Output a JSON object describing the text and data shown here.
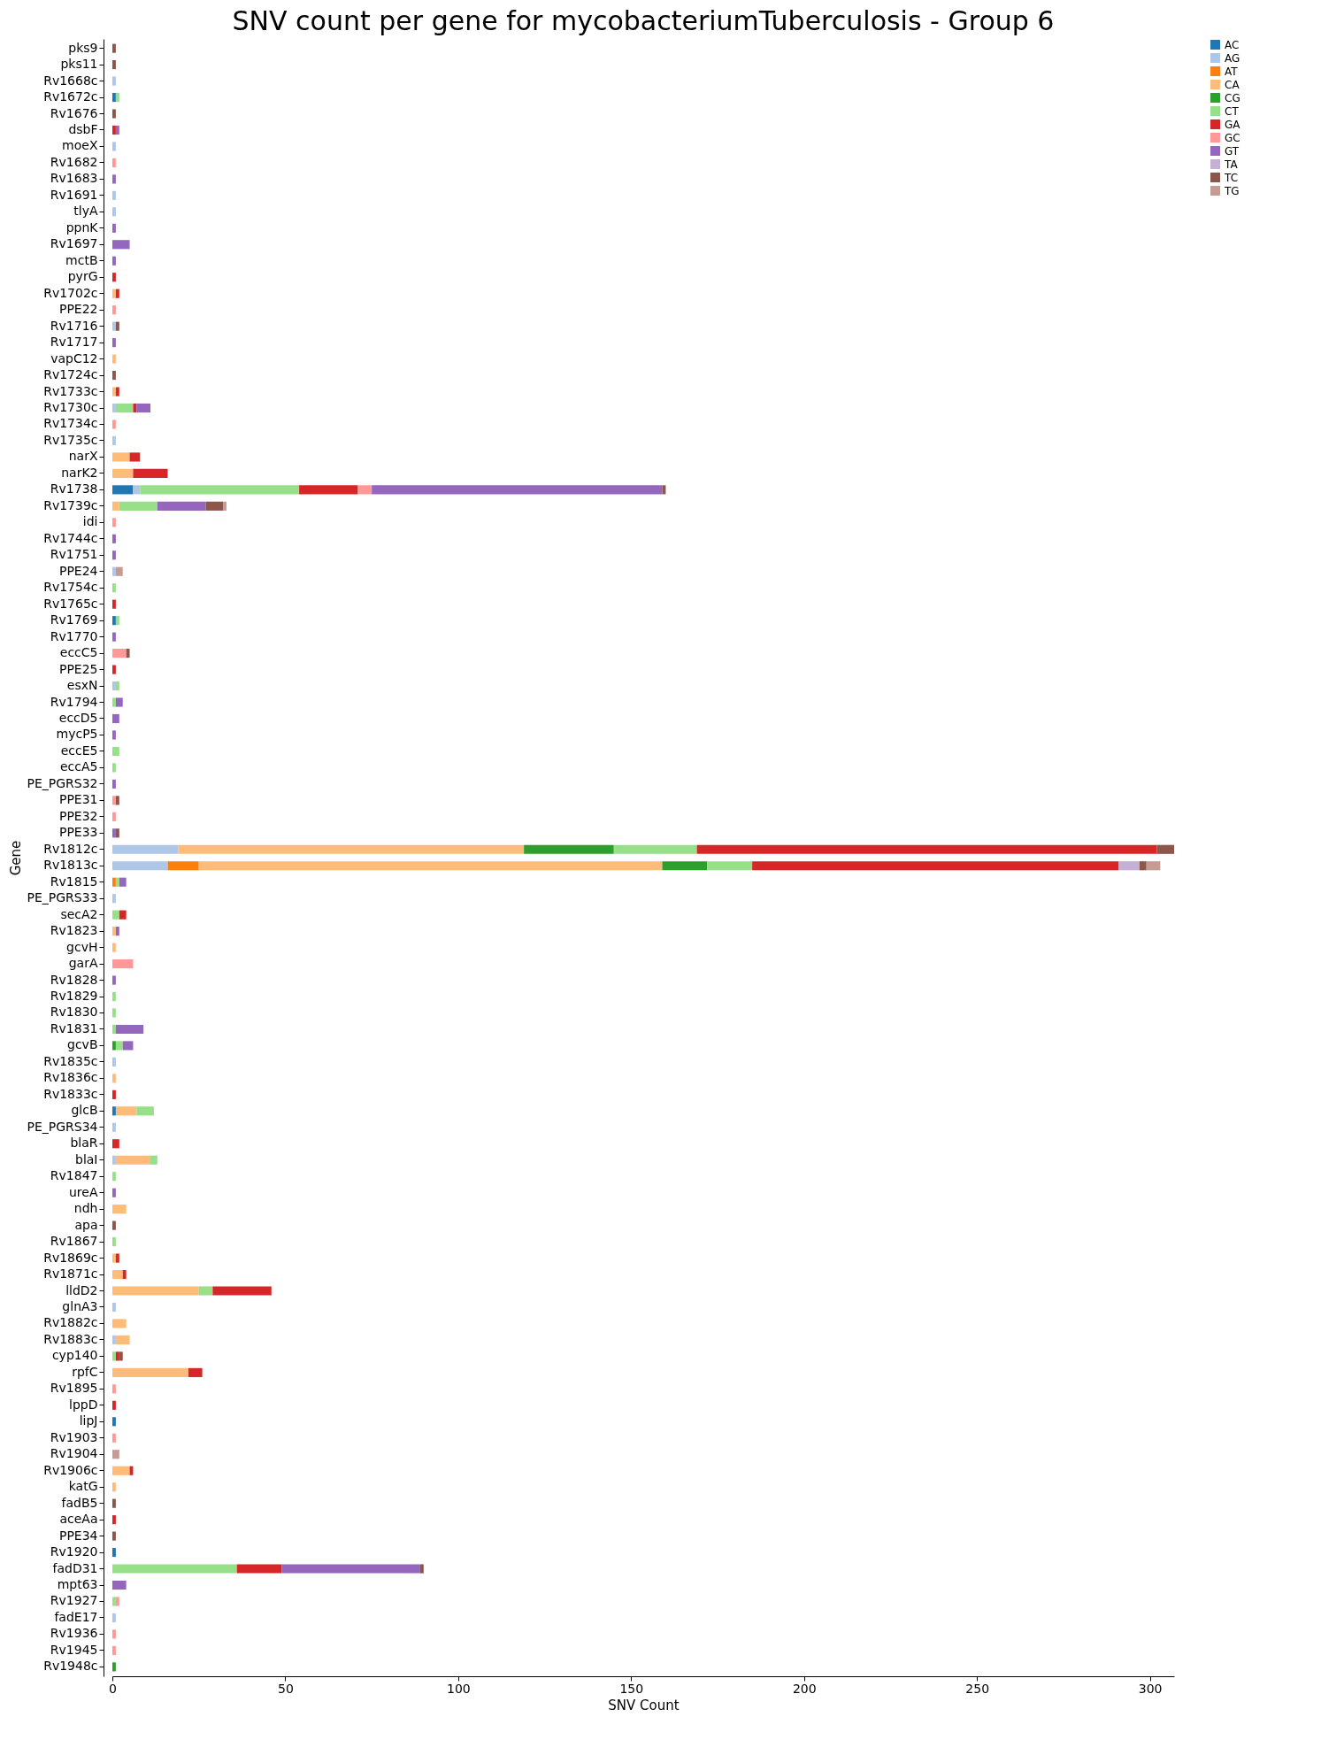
{
  "chart_data": {
    "type": "bar",
    "orientation": "horizontal",
    "stacked": true,
    "title": "SNV count per gene for mycobacteriumTuberculosis - Group 6",
    "xlabel": "SNV Count",
    "ylabel": "Gene",
    "categories": [
      "pks9",
      "pks11",
      "Rv1668c",
      "Rv1672c",
      "Rv1676",
      "dsbF",
      "moeX",
      "Rv1682",
      "Rv1683",
      "Rv1691",
      "tlyA",
      "ppnK",
      "Rv1697",
      "mctB",
      "pyrG",
      "Rv1702c",
      "PPE22",
      "Rv1716",
      "Rv1717",
      "vapC12",
      "Rv1724c",
      "Rv1733c",
      "Rv1730c",
      "Rv1734c",
      "Rv1735c",
      "narX",
      "narK2",
      "Rv1738",
      "Rv1739c",
      "idi",
      "Rv1744c",
      "Rv1751",
      "PPE24",
      "Rv1754c",
      "Rv1765c",
      "Rv1769",
      "Rv1770",
      "eccC5",
      "PPE25",
      "esxN",
      "Rv1794",
      "eccD5",
      "mycP5",
      "eccE5",
      "eccA5",
      "PE_PGRS32",
      "PPE31",
      "PPE32",
      "PPE33",
      "Rv1812c",
      "Rv1813c",
      "Rv1815",
      "PE_PGRS33",
      "secA2",
      "Rv1823",
      "gcvH",
      "garA",
      "Rv1828",
      "Rv1829",
      "Rv1830",
      "Rv1831",
      "gcvB",
      "Rv1835c",
      "Rv1836c",
      "Rv1833c",
      "glcB",
      "PE_PGRS34",
      "blaR",
      "blaI",
      "Rv1847",
      "ureA",
      "ndh",
      "apa",
      "Rv1867",
      "Rv1869c",
      "Rv1871c",
      "lldD2",
      "glnA3",
      "Rv1882c",
      "Rv1883c",
      "cyp140",
      "rpfC",
      "Rv1895",
      "lppD",
      "lipJ",
      "Rv1903",
      "Rv1904",
      "Rv1906c",
      "katG",
      "fadB5",
      "aceAa",
      "PPE34",
      "Rv1920",
      "fadD31",
      "mpt63",
      "Rv1927",
      "fadE17",
      "Rv1936",
      "Rv1945",
      "Rv1948c"
    ],
    "series": [
      {
        "name": "AC",
        "color": "#1f77b4",
        "values": [
          0,
          0,
          0,
          1,
          0,
          0,
          0,
          0,
          0,
          0,
          0,
          0,
          0,
          0,
          0,
          0,
          0,
          0,
          0,
          0,
          0,
          0,
          0,
          0,
          0,
          0,
          0,
          6,
          0,
          0,
          0,
          0,
          0,
          0,
          0,
          1,
          0,
          0,
          0,
          0,
          0,
          0,
          0,
          0,
          0,
          0,
          0,
          0,
          0,
          0,
          0,
          0,
          0,
          0,
          0,
          0,
          0,
          0,
          0,
          0,
          0,
          0,
          0,
          0,
          0,
          1,
          0,
          0,
          0,
          0,
          0,
          0,
          0,
          0,
          0,
          0,
          0,
          0,
          0,
          0,
          0,
          0,
          0,
          0,
          1,
          0,
          0,
          0,
          0,
          0,
          0,
          0,
          1,
          0,
          0,
          0,
          0,
          0,
          0,
          0
        ]
      },
      {
        "name": "AG",
        "color": "#aec7e8",
        "values": [
          0,
          0,
          1,
          0,
          0,
          0,
          1,
          0,
          0,
          1,
          1,
          0,
          0,
          0,
          0,
          0,
          0,
          1,
          0,
          0,
          0,
          0,
          1,
          0,
          1,
          0,
          0,
          2,
          0,
          0,
          0,
          0,
          1,
          0,
          0,
          0,
          0,
          0,
          0,
          1,
          0,
          0,
          0,
          0,
          0,
          0,
          0,
          0,
          0,
          19,
          16,
          0,
          1,
          0,
          0,
          0,
          0,
          0,
          0,
          0,
          0,
          0,
          1,
          0,
          0,
          0,
          1,
          0,
          1,
          0,
          0,
          0,
          0,
          0,
          0,
          0,
          0,
          1,
          0,
          1,
          0,
          0,
          0,
          0,
          0,
          0,
          0,
          0,
          0,
          0,
          0,
          0,
          0,
          0,
          0,
          0,
          1,
          0,
          0,
          0
        ]
      },
      {
        "name": "AT",
        "color": "#ff7f0e",
        "values": [
          0,
          0,
          0,
          0,
          0,
          0,
          0,
          0,
          0,
          0,
          0,
          0,
          0,
          0,
          0,
          0,
          0,
          0,
          0,
          0,
          0,
          0,
          0,
          0,
          0,
          0,
          0,
          0,
          0,
          0,
          0,
          0,
          0,
          0,
          0,
          0,
          0,
          0,
          0,
          0,
          0,
          0,
          0,
          0,
          0,
          0,
          0,
          0,
          0,
          0,
          9,
          1,
          0,
          0,
          0,
          0,
          0,
          0,
          0,
          0,
          0,
          0,
          0,
          0,
          0,
          0,
          0,
          0,
          0,
          0,
          0,
          0,
          0,
          0,
          0,
          0,
          0,
          0,
          0,
          0,
          0,
          0,
          0,
          0,
          0,
          0,
          0,
          0,
          0,
          0,
          0,
          0,
          0,
          0,
          0,
          0,
          0,
          0,
          0,
          0
        ]
      },
      {
        "name": "CA",
        "color": "#ffbb78",
        "values": [
          0,
          0,
          0,
          0,
          0,
          0,
          0,
          0,
          0,
          0,
          0,
          0,
          0,
          0,
          0,
          1,
          0,
          0,
          0,
          1,
          0,
          1,
          0,
          0,
          0,
          5,
          6,
          0,
          2,
          0,
          0,
          0,
          0,
          0,
          0,
          0,
          0,
          0,
          0,
          0,
          0,
          0,
          0,
          0,
          0,
          0,
          0,
          0,
          0,
          100,
          134,
          0,
          0,
          0,
          1,
          1,
          0,
          0,
          0,
          0,
          0,
          0,
          0,
          1,
          0,
          6,
          0,
          0,
          10,
          0,
          0,
          4,
          0,
          0,
          1,
          3,
          25,
          0,
          4,
          4,
          0,
          22,
          0,
          0,
          0,
          0,
          0,
          5,
          1,
          0,
          0,
          0,
          0,
          0,
          0,
          0,
          0,
          0,
          0,
          0
        ]
      },
      {
        "name": "CG",
        "color": "#2ca02c",
        "values": [
          0,
          0,
          0,
          0,
          0,
          0,
          0,
          0,
          0,
          0,
          0,
          0,
          0,
          0,
          0,
          0,
          0,
          0,
          0,
          0,
          0,
          0,
          0,
          0,
          0,
          0,
          0,
          0,
          0,
          0,
          0,
          0,
          0,
          0,
          0,
          0,
          0,
          0,
          0,
          0,
          0,
          0,
          0,
          0,
          0,
          0,
          0,
          0,
          0,
          26,
          13,
          0,
          0,
          0,
          0,
          0,
          0,
          0,
          0,
          0,
          0,
          1,
          0,
          0,
          0,
          0,
          0,
          0,
          0,
          0,
          0,
          0,
          0,
          0,
          0,
          0,
          0,
          0,
          0,
          0,
          0,
          0,
          0,
          0,
          0,
          0,
          0,
          0,
          0,
          0,
          0,
          0,
          0,
          0,
          0,
          0,
          0,
          0,
          0,
          1
        ]
      },
      {
        "name": "CT",
        "color": "#98df8a",
        "values": [
          0,
          0,
          0,
          1,
          0,
          0,
          0,
          0,
          0,
          0,
          0,
          0,
          0,
          0,
          0,
          0,
          0,
          0,
          0,
          0,
          0,
          0,
          5,
          0,
          0,
          0,
          0,
          46,
          11,
          0,
          0,
          0,
          0,
          1,
          0,
          1,
          0,
          0,
          0,
          1,
          1,
          0,
          0,
          2,
          1,
          0,
          0,
          0,
          0,
          24,
          13,
          1,
          0,
          2,
          0,
          0,
          0,
          0,
          1,
          1,
          1,
          2,
          0,
          0,
          0,
          5,
          0,
          0,
          2,
          1,
          0,
          0,
          0,
          1,
          0,
          0,
          4,
          0,
          0,
          0,
          1,
          0,
          0,
          0,
          0,
          0,
          0,
          0,
          0,
          0,
          0,
          0,
          0,
          36,
          0,
          1,
          0,
          0,
          0,
          0
        ]
      },
      {
        "name": "GA",
        "color": "#d62728",
        "values": [
          0,
          0,
          0,
          0,
          0,
          1,
          0,
          0,
          0,
          0,
          0,
          0,
          0,
          0,
          1,
          1,
          0,
          0,
          0,
          0,
          0,
          1,
          1,
          0,
          0,
          3,
          10,
          17,
          0,
          0,
          0,
          0,
          0,
          0,
          1,
          0,
          0,
          0,
          1,
          0,
          0,
          0,
          0,
          0,
          0,
          0,
          0,
          0,
          0,
          133,
          106,
          0,
          0,
          2,
          0,
          0,
          0,
          0,
          0,
          0,
          0,
          0,
          0,
          0,
          1,
          0,
          0,
          2,
          0,
          0,
          0,
          0,
          0,
          0,
          1,
          1,
          17,
          0,
          0,
          0,
          1,
          4,
          0,
          1,
          0,
          0,
          0,
          1,
          0,
          0,
          1,
          0,
          0,
          13,
          0,
          0,
          0,
          0,
          0,
          0
        ]
      },
      {
        "name": "GC",
        "color": "#ff9896",
        "values": [
          0,
          0,
          0,
          0,
          0,
          0,
          0,
          1,
          0,
          0,
          0,
          0,
          0,
          0,
          0,
          0,
          1,
          0,
          0,
          0,
          0,
          0,
          0,
          1,
          0,
          0,
          0,
          4,
          0,
          1,
          0,
          0,
          0,
          0,
          0,
          0,
          0,
          4,
          0,
          0,
          0,
          0,
          0,
          0,
          0,
          0,
          1,
          1,
          0,
          0,
          0,
          0,
          0,
          0,
          0,
          0,
          6,
          0,
          0,
          0,
          0,
          0,
          0,
          0,
          0,
          0,
          0,
          0,
          0,
          0,
          0,
          0,
          0,
          0,
          0,
          0,
          0,
          0,
          0,
          0,
          0,
          0,
          1,
          0,
          0,
          1,
          0,
          0,
          0,
          0,
          0,
          0,
          0,
          0,
          0,
          1,
          0,
          1,
          1,
          0
        ]
      },
      {
        "name": "GT",
        "color": "#9467bd",
        "values": [
          0,
          0,
          0,
          0,
          0,
          1,
          0,
          0,
          1,
          0,
          0,
          1,
          5,
          1,
          0,
          0,
          0,
          0,
          1,
          0,
          0,
          0,
          4,
          0,
          0,
          0,
          0,
          84,
          14,
          0,
          1,
          1,
          0,
          0,
          0,
          0,
          1,
          0,
          0,
          0,
          2,
          2,
          1,
          0,
          0,
          1,
          0,
          0,
          1,
          0,
          0,
          2,
          0,
          0,
          1,
          0,
          0,
          1,
          0,
          0,
          8,
          3,
          0,
          0,
          0,
          0,
          0,
          0,
          0,
          0,
          1,
          0,
          0,
          0,
          0,
          0,
          0,
          0,
          0,
          0,
          0,
          0,
          0,
          0,
          0,
          0,
          0,
          0,
          0,
          0,
          0,
          0,
          0,
          40,
          4,
          0,
          0,
          0,
          0,
          0
        ]
      },
      {
        "name": "TA",
        "color": "#c5b0d5",
        "values": [
          0,
          0,
          0,
          0,
          0,
          0,
          0,
          0,
          0,
          0,
          0,
          0,
          0,
          0,
          0,
          0,
          0,
          0,
          0,
          0,
          0,
          0,
          0,
          0,
          0,
          0,
          0,
          0,
          0,
          0,
          0,
          0,
          0,
          0,
          0,
          0,
          0,
          0,
          0,
          0,
          0,
          0,
          0,
          0,
          0,
          0,
          0,
          0,
          0,
          0,
          6,
          0,
          0,
          0,
          0,
          0,
          0,
          0,
          0,
          0,
          0,
          0,
          0,
          0,
          0,
          0,
          0,
          0,
          0,
          0,
          0,
          0,
          0,
          0,
          0,
          0,
          0,
          0,
          0,
          0,
          0,
          0,
          0,
          0,
          0,
          0,
          0,
          0,
          0,
          0,
          0,
          0,
          0,
          0,
          0,
          0,
          0,
          0,
          0,
          0
        ]
      },
      {
        "name": "TC",
        "color": "#8c564b",
        "values": [
          1,
          1,
          0,
          0,
          1,
          0,
          0,
          0,
          0,
          0,
          0,
          0,
          0,
          0,
          0,
          0,
          0,
          1,
          0,
          0,
          1,
          0,
          0,
          0,
          0,
          0,
          0,
          1,
          5,
          0,
          0,
          0,
          0,
          0,
          0,
          0,
          0,
          1,
          0,
          0,
          0,
          0,
          0,
          0,
          0,
          0,
          1,
          0,
          1,
          5,
          2,
          0,
          0,
          0,
          0,
          0,
          0,
          0,
          0,
          0,
          0,
          0,
          0,
          0,
          0,
          0,
          0,
          0,
          0,
          0,
          0,
          0,
          1,
          0,
          0,
          0,
          0,
          0,
          0,
          0,
          1,
          0,
          0,
          0,
          0,
          0,
          0,
          0,
          0,
          1,
          0,
          1,
          0,
          1,
          0,
          0,
          0,
          0,
          0,
          0
        ]
      },
      {
        "name": "TG",
        "color": "#c49c94",
        "values": [
          0,
          0,
          0,
          0,
          0,
          0,
          0,
          0,
          0,
          0,
          0,
          0,
          0,
          0,
          0,
          0,
          0,
          0,
          0,
          0,
          0,
          0,
          0,
          0,
          0,
          0,
          0,
          0,
          1,
          0,
          0,
          0,
          2,
          0,
          0,
          0,
          0,
          0,
          0,
          0,
          0,
          0,
          0,
          0,
          0,
          0,
          0,
          0,
          0,
          0,
          4,
          0,
          0,
          0,
          0,
          0,
          0,
          0,
          0,
          0,
          0,
          0,
          0,
          0,
          0,
          0,
          0,
          0,
          0,
          0,
          0,
          0,
          0,
          0,
          0,
          0,
          0,
          0,
          0,
          0,
          0,
          0,
          0,
          0,
          0,
          0,
          2,
          0,
          0,
          0,
          0,
          0,
          0,
          0,
          0,
          0,
          0,
          0,
          0,
          0
        ]
      }
    ],
    "xlim": [
      0,
      307
    ],
    "xticks": [
      0,
      50,
      100,
      150,
      200,
      250,
      300
    ],
    "grid": false,
    "legend": "top right"
  }
}
